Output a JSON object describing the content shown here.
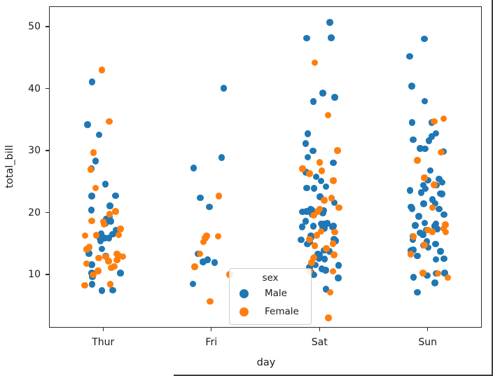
{
  "chart_data": {
    "type": "scatter",
    "variant": "stripplot",
    "title": "",
    "xlabel": "day",
    "ylabel": "total_bill",
    "categories": [
      "Thur",
      "Fri",
      "Sat",
      "Sun"
    ],
    "y_ticks": [
      10,
      20,
      30,
      40,
      50
    ],
    "ylim": [
      1.4,
      53.3
    ],
    "grid": false,
    "legend": {
      "title": "sex",
      "position": "lower center",
      "entries": [
        {
          "label": "Male",
          "color": "#1f77b4"
        },
        {
          "label": "Female",
          "color": "#ff7f0e"
        }
      ]
    },
    "series": [
      {
        "name": "Male",
        "color": "#1f77b4",
        "values_by_category": {
          "Thur": [
            27.2,
            22.76,
            17.29,
            19.44,
            16.66,
            32.68,
            15.98,
            13.03,
            18.28,
            24.71,
            21.16,
            11.69,
            14.26,
            15.95,
            8.52,
            22.82,
            19.08,
            10.33,
            16.0,
            34.3,
            41.19,
            9.78,
            7.51,
            28.44,
            15.48,
            16.58,
            7.56,
            10.34,
            13.51,
            18.71,
            20.53
          ],
          "Fri": [
            28.97,
            22.49,
            40.17,
            27.28,
            12.03,
            21.01,
            12.46,
            12.16,
            8.58,
            13.42
          ],
          "Sat": [
            20.65,
            17.92,
            39.42,
            19.82,
            17.81,
            13.37,
            12.69,
            21.7,
            9.55,
            18.35,
            17.78,
            24.06,
            16.31,
            18.69,
            31.27,
            16.04,
            38.01,
            11.24,
            48.27,
            20.29,
            13.81,
            11.02,
            18.29,
            17.59,
            20.08,
            20.23,
            15.01,
            10.51,
            17.92,
            15.36,
            20.49,
            25.21,
            18.24,
            14.0,
            50.81,
            15.81,
            26.59,
            38.73,
            24.27,
            30.06,
            25.89,
            48.33,
            28.15,
            11.59,
            7.74,
            20.45,
            13.28,
            24.01,
            15.69,
            11.61,
            10.77,
            15.53,
            10.07,
            12.6,
            32.83,
            29.03,
            22.67,
            17.82
          ],
          "Sun": [
            10.34,
            21.01,
            23.68,
            25.29,
            8.77,
            26.88,
            15.04,
            14.78,
            10.27,
            15.42,
            18.43,
            21.58,
            16.29,
            17.46,
            13.94,
            9.68,
            30.4,
            18.29,
            22.23,
            32.4,
            18.04,
            12.54,
            9.94,
            25.56,
            19.49,
            38.07,
            23.95,
            29.93,
            14.07,
            13.13,
            17.26,
            24.55,
            19.77,
            48.17,
            25.0,
            16.49,
            21.5,
            12.66,
            13.81,
            24.52,
            20.76,
            31.71,
            31.85,
            16.82,
            32.9,
            17.89,
            14.48,
            34.63,
            34.65,
            23.33,
            45.35,
            23.17,
            40.55,
            20.69,
            30.46,
            23.1,
            15.69,
            7.25
          ]
        }
      },
      {
        "name": "Female",
        "color": "#ff7f0e",
        "values_by_category": {
          "Thur": [
            10.07,
            34.83,
            10.65,
            12.43,
            24.08,
            13.42,
            12.48,
            29.8,
            14.52,
            11.38,
            20.27,
            11.17,
            12.26,
            18.26,
            8.51,
            14.15,
            13.16,
            17.47,
            27.05,
            16.43,
            8.35,
            18.64,
            11.87,
            19.81,
            43.11,
            13.0,
            12.74,
            13.0,
            16.4,
            16.47,
            18.78
          ],
          "Fri": [
            5.75,
            16.32,
            22.75,
            11.35,
            15.38,
            13.42,
            15.98,
            16.27,
            10.09
          ],
          "Sat": [
            20.29,
            15.77,
            19.65,
            15.06,
            20.69,
            16.93,
            26.41,
            16.45,
            3.07,
            12.02,
            17.07,
            26.86,
            25.28,
            14.73,
            44.3,
            22.42,
            20.92,
            14.31,
            7.25,
            10.59,
            10.63,
            12.76,
            13.27,
            28.17,
            12.9,
            30.14,
            22.12,
            35.83,
            27.18
          ],
          "Sun": [
            16.99,
            24.59,
            35.26,
            14.83,
            10.33,
            16.97,
            28.55,
            10.29,
            34.81,
            25.71,
            17.31,
            29.85,
            13.39,
            16.21,
            17.51,
            9.6,
            20.9,
            18.15
          ]
        }
      }
    ]
  }
}
